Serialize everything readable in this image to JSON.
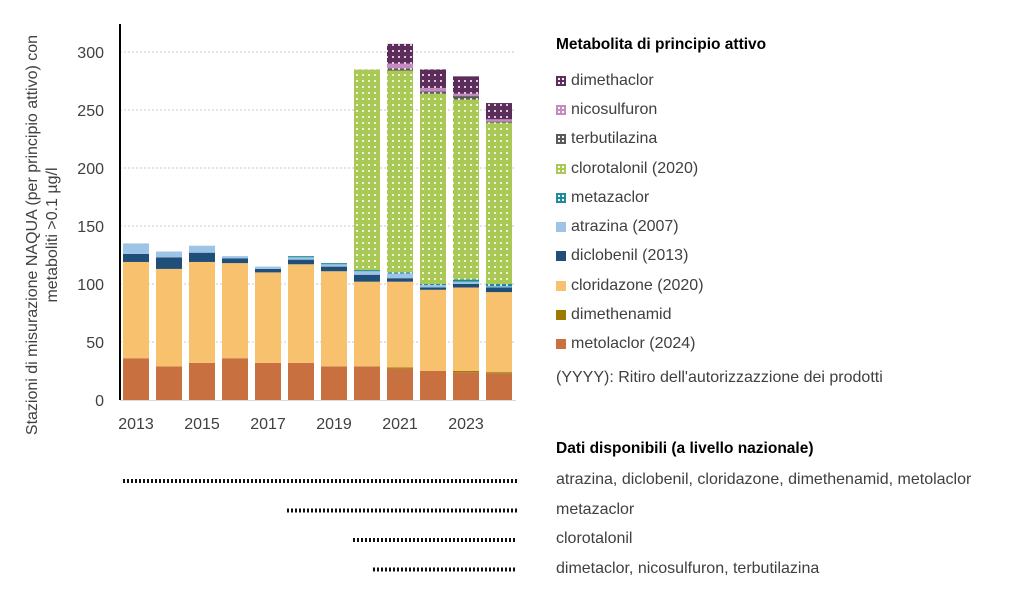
{
  "chart_data": {
    "type": "bar",
    "stacked": true,
    "categories": [
      "2013",
      "2014",
      "2015",
      "2016",
      "2017",
      "2018",
      "2019",
      "2020",
      "2021",
      "2022",
      "2023",
      "2024"
    ],
    "x_tick_labels": [
      "2013",
      "2015",
      "2017",
      "2019",
      "2021",
      "2023"
    ],
    "ylabel": "Stazioni di misurazione NAQUA (per principio attivo) con metaboliti >0.1 µg/l",
    "ylim": [
      0,
      310
    ],
    "yticks": [
      0,
      50,
      100,
      150,
      200,
      250,
      300
    ],
    "grid": true,
    "series": [
      {
        "name": "metolaclor (2024)",
        "color": "#c87040",
        "pattern": "solid",
        "values": [
          36,
          29,
          32,
          36,
          32,
          32,
          29,
          29,
          27,
          25,
          24,
          23
        ]
      },
      {
        "name": "dimethenamid",
        "color": "#9c7a00",
        "pattern": "solid",
        "values": [
          0,
          0,
          0,
          0,
          0,
          0,
          0,
          0,
          1,
          0,
          1,
          1
        ]
      },
      {
        "name": "cloridazone (2020)",
        "color": "#f8c16e",
        "pattern": "solid",
        "values": [
          83,
          84,
          87,
          82,
          78,
          85,
          82,
          73,
          74,
          70,
          72,
          69
        ]
      },
      {
        "name": "diclobenil (2013)",
        "color": "#1f4e79",
        "pattern": "solid",
        "values": [
          7,
          10,
          8,
          4,
          3,
          4,
          4,
          6,
          3,
          2,
          3,
          4
        ]
      },
      {
        "name": "atrazina (2007)",
        "color": "#9dc3e6",
        "pattern": "solid",
        "values": [
          9,
          5,
          6,
          2,
          2,
          2,
          2,
          3,
          4,
          2,
          2,
          1
        ]
      },
      {
        "name": "metazaclor",
        "color": "#1b8a9a",
        "pattern": "dotted",
        "values": [
          0,
          0,
          0,
          0,
          0,
          1,
          1,
          1,
          1,
          1,
          2,
          2
        ]
      },
      {
        "name": "clorotalonil (2020)",
        "color": "#a9c855",
        "pattern": "dotted",
        "values": [
          0,
          0,
          0,
          0,
          0,
          0,
          0,
          173,
          174,
          164,
          155,
          139
        ]
      },
      {
        "name": "terbutilazina",
        "color": "#595959",
        "pattern": "dotted",
        "values": [
          0,
          0,
          0,
          0,
          0,
          0,
          0,
          0,
          2,
          2,
          3,
          1
        ]
      },
      {
        "name": "nicosulfuron",
        "color": "#c58ac0",
        "pattern": "dotted",
        "values": [
          0,
          0,
          0,
          0,
          0,
          0,
          0,
          0,
          4,
          3,
          2,
          2
        ]
      },
      {
        "name": "dimethaclor",
        "color": "#5c2d5a",
        "pattern": "dotted",
        "values": [
          0,
          0,
          0,
          0,
          0,
          0,
          0,
          0,
          17,
          16,
          15,
          14
        ]
      }
    ],
    "legend_title": "Metabolita di principio attivo",
    "legend_position": "right",
    "legend_order": [
      "dimethaclor",
      "nicosulfuron",
      "terbutilazina",
      "clorotalonil (2020)",
      "metazaclor",
      "atrazina (2007)",
      "diclobenil (2013)",
      "cloridazone (2020)",
      "dimethenamid",
      "metolaclor (2024)"
    ],
    "legend_note": "(YYYY):  Ritiro dell'autorizzazzione dei prodotti",
    "availability": {
      "title": "Dati disponibili (a livello nazionale)",
      "rows": [
        {
          "label": "atrazina, diclobenil, cloridazone, dimethenamid, metolaclor",
          "from": "2013",
          "to": "2024"
        },
        {
          "label": "metazaclor",
          "from": "2018",
          "to": "2024"
        },
        {
          "label": "clorotalonil",
          "from": "2020",
          "to": "2024"
        },
        {
          "label": "dimetaclor, nicosulfuron, terbutilazina",
          "from": "2021",
          "to": "2024"
        }
      ]
    }
  }
}
